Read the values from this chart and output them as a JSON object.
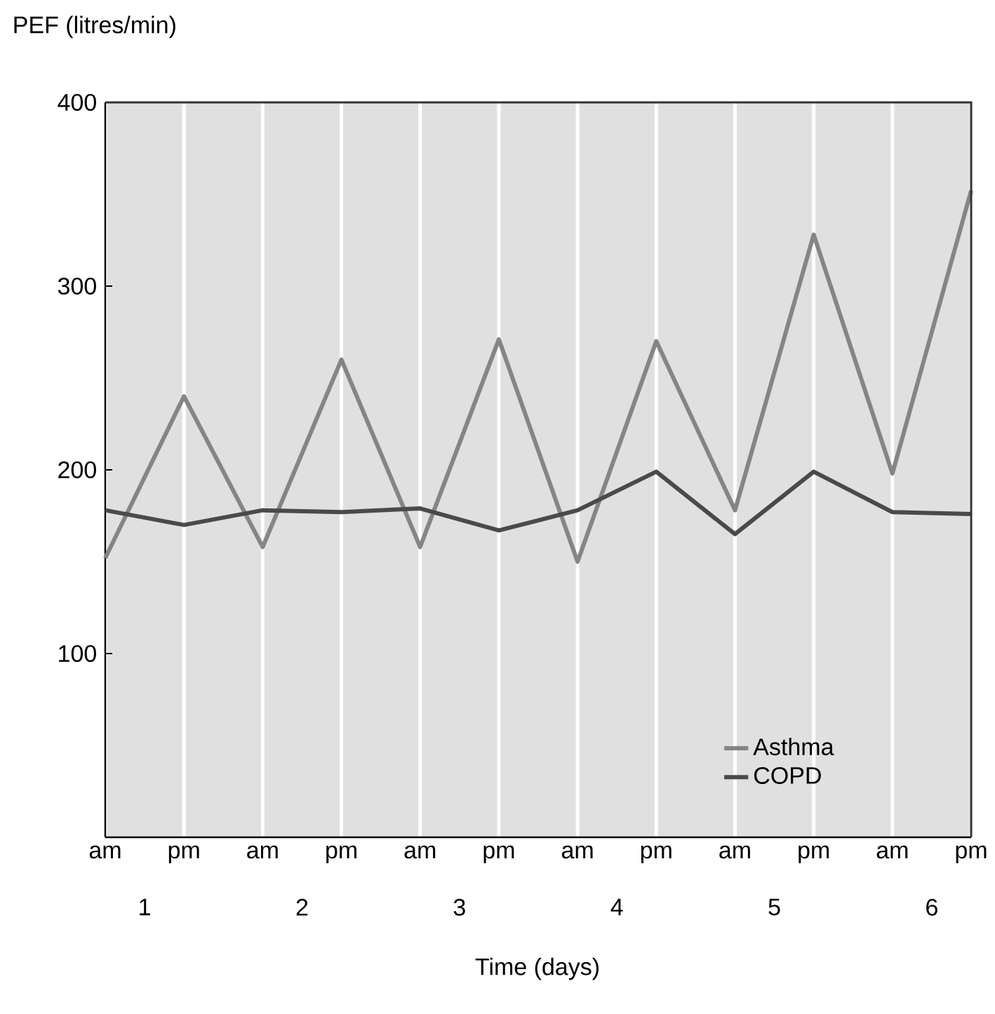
{
  "chart_data": {
    "type": "line",
    "ylabel": "PEF (litres/min)",
    "xlabel": "Time (days)",
    "categories": [
      "am",
      "pm",
      "am",
      "pm",
      "am",
      "pm",
      "am",
      "pm",
      "am",
      "pm",
      "am",
      "pm"
    ],
    "annotations": [
      "1",
      "2",
      "3",
      "4",
      "5",
      "6"
    ],
    "series": [
      {
        "name": "Asthma",
        "color": "#858585",
        "values": [
          152,
          240,
          158,
          260,
          158,
          271,
          150,
          270,
          178,
          328,
          198,
          352
        ]
      },
      {
        "name": "COPD",
        "color": "#4a4a4a",
        "values": [
          178,
          170,
          178,
          177,
          179,
          167,
          178,
          199,
          165,
          199,
          177,
          176
        ]
      }
    ],
    "ylim": [
      0,
      400
    ],
    "yticks": [
      100,
      200,
      300,
      400
    ],
    "grid": "x",
    "legend": "bottom right",
    "marker": "none",
    "line_style": "solid"
  }
}
